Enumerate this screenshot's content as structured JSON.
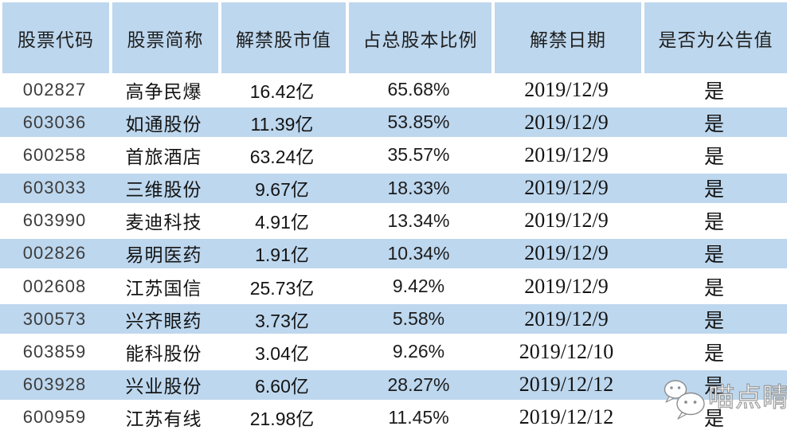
{
  "colors": {
    "header_bg": "#BDD7EE",
    "stripe_bg": "#BDD7EE",
    "row_bg": "#FFFFFF",
    "text": "#141414",
    "grid_white": "#FFFFFF"
  },
  "watermark": {
    "icon": "wechat-icon",
    "text": "喵点睛"
  },
  "chart_data": {
    "type": "table",
    "title": "",
    "columns": [
      "股票代码",
      "股票简称",
      "解禁股市值",
      "占总股本比例",
      "解禁日期",
      "是否为公告值"
    ],
    "rows": [
      {
        "code": "002827",
        "name": "高争民爆",
        "value": "16.42亿",
        "pct": "65.68%",
        "date": "2019/12/9",
        "flag": "是"
      },
      {
        "code": "603036",
        "name": "如通股份",
        "value": "11.39亿",
        "pct": "53.85%",
        "date": "2019/12/9",
        "flag": "是"
      },
      {
        "code": "600258",
        "name": "首旅酒店",
        "value": "63.24亿",
        "pct": "35.57%",
        "date": "2019/12/9",
        "flag": "是"
      },
      {
        "code": "603033",
        "name": "三维股份",
        "value": "9.67亿",
        "pct": "18.33%",
        "date": "2019/12/9",
        "flag": "是"
      },
      {
        "code": "603990",
        "name": "麦迪科技",
        "value": "4.91亿",
        "pct": "13.34%",
        "date": "2019/12/9",
        "flag": "是"
      },
      {
        "code": "002826",
        "name": "易明医药",
        "value": "1.91亿",
        "pct": "10.34%",
        "date": "2019/12/9",
        "flag": "是"
      },
      {
        "code": "002608",
        "name": "江苏国信",
        "value": "25.73亿",
        "pct": "9.42%",
        "date": "2019/12/9",
        "flag": "是"
      },
      {
        "code": "300573",
        "name": "兴齐眼药",
        "value": "3.73亿",
        "pct": "5.58%",
        "date": "2019/12/9",
        "flag": "是"
      },
      {
        "code": "603859",
        "name": "能科股份",
        "value": "3.04亿",
        "pct": "9.26%",
        "date": "2019/12/10",
        "flag": "是"
      },
      {
        "code": "603928",
        "name": "兴业股份",
        "value": "6.60亿",
        "pct": "28.27%",
        "date": "2019/12/12",
        "flag": "是"
      },
      {
        "code": "600959",
        "name": "江苏有线",
        "value": "21.98亿",
        "pct": "11.45%",
        "date": "2019/12/12",
        "flag": "是"
      }
    ]
  }
}
